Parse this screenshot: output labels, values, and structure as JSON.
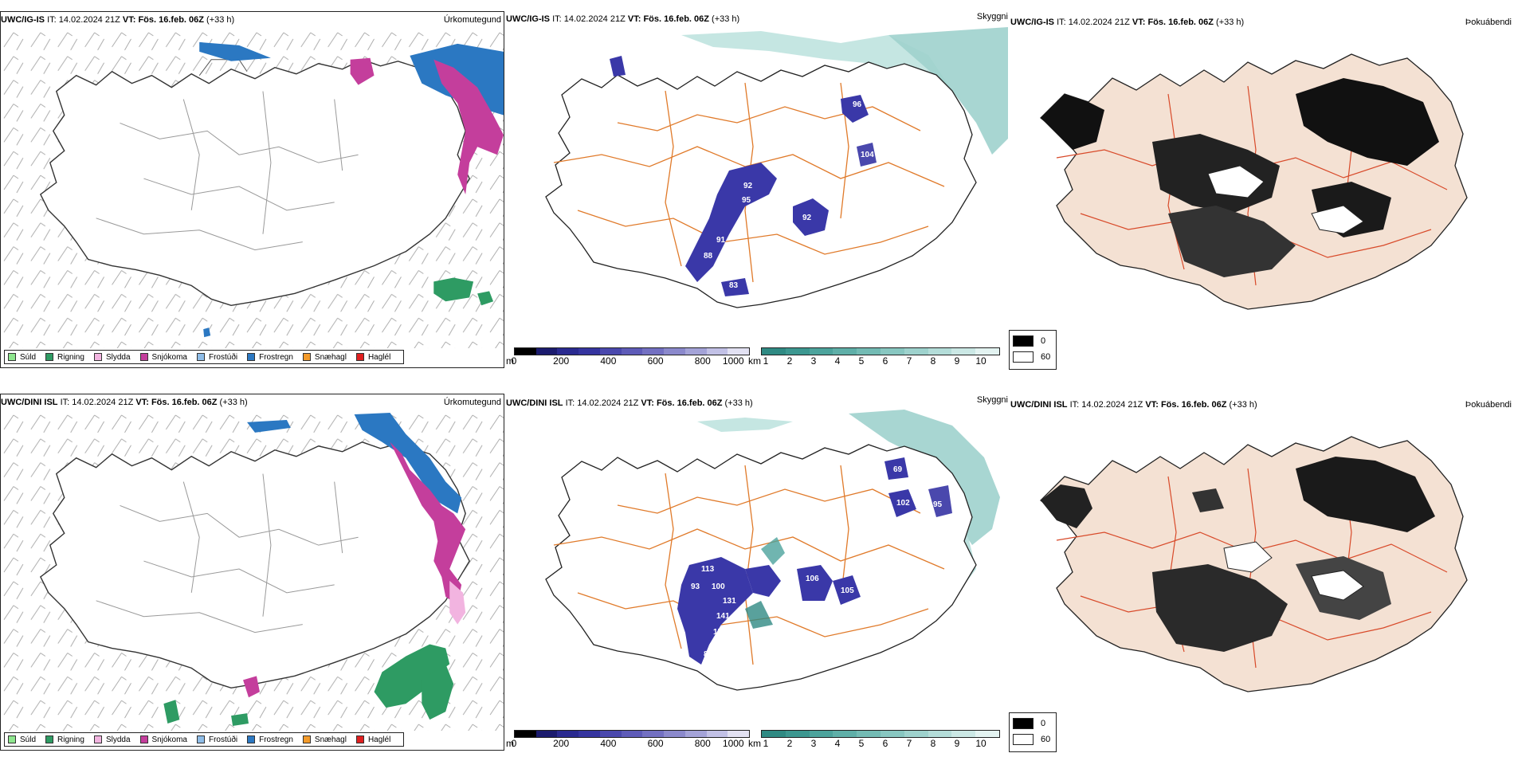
{
  "legend_precip": [
    {
      "label": "Súld",
      "color": "#8ee68e"
    },
    {
      "label": "Rigning",
      "color": "#2e9b63"
    },
    {
      "label": "Slydda",
      "color": "#f2b4e0"
    },
    {
      "label": "Snjókoma",
      "color": "#c43e9c"
    },
    {
      "label": "Frostúði",
      "color": "#8fbde8"
    },
    {
      "label": "Frostregn",
      "color": "#2b78c2"
    },
    {
      "label": "Snæhagl",
      "color": "#f39a2a"
    },
    {
      "label": "Haglél",
      "color": "#e01f1f"
    }
  ],
  "colorbar_ceiling": {
    "unit": "m",
    "ticks": [
      "0",
      "200",
      "400",
      "600",
      "800",
      "1000"
    ],
    "colors": [
      "#000000",
      "#1b1b6e",
      "#2a2a90",
      "#35349f",
      "#4a48ad",
      "#5e5bb8",
      "#7370c2",
      "#8b89cc",
      "#a4a3d8",
      "#c2c1e6",
      "#e2e1f2"
    ]
  },
  "colorbar_visibility": {
    "unit": "km",
    "ticks": [
      "1",
      "2",
      "3",
      "4",
      "5",
      "6",
      "7",
      "8",
      "9",
      "10"
    ],
    "colors": [
      "#2f8a83",
      "#3c9790",
      "#4ca39c",
      "#5fafa8",
      "#73bbb4",
      "#88c7c1",
      "#9ed2cd",
      "#b4ddd9",
      "#cbe8e5",
      "#e3f3f1"
    ]
  },
  "fog_legend": {
    "values": [
      "0",
      "60"
    ],
    "colors": [
      "#000000",
      "#ffffff"
    ]
  },
  "rows": [
    {
      "model": "UWC/IG-IS",
      "it_label": "IT:",
      "it": "14.02.2024 21Z",
      "vt_label": "VT:",
      "vt": "Fös. 16.feb. 06Z",
      "lead": "(+33 h)",
      "panel_titles": [
        "Úrkomutegund",
        "Skyggni",
        "Þokuábendi"
      ],
      "cloud_labels": [
        "92",
        "95",
        "91",
        "88",
        "92",
        "83",
        "96",
        "104"
      ]
    },
    {
      "model": "UWC/DINI ISL",
      "it_label": "IT:",
      "it": "14.02.2024 21Z",
      "vt_label": "VT:",
      "vt": "Fös. 16.feb. 06Z",
      "lead": "(+33 h)",
      "panel_titles": [
        "Úrkomutegund",
        "Skyggni",
        "Þokuábendi"
      ],
      "cloud_labels": [
        "113",
        "93",
        "100",
        "106",
        "105",
        "131",
        "141",
        "150",
        "88",
        "69",
        "102",
        "95"
      ]
    }
  ]
}
